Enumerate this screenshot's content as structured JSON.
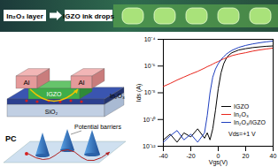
{
  "chart_data": {
    "type": "line",
    "x_label": "Vgs(V)",
    "y_label": "Ids (A)",
    "log": "y",
    "xlim": [
      -40,
      40
    ],
    "xticks": [
      -40,
      -20,
      0,
      20,
      40
    ],
    "ylim": [
      1e-12,
      0.0001
    ],
    "yticks": [
      {
        "value": 1e-12,
        "label": "10⁻¹²"
      },
      {
        "value": 1e-10,
        "label": "10⁻¹⁰"
      },
      {
        "value": 1e-08,
        "label": "10⁻⁸"
      },
      {
        "value": 1e-06,
        "label": "10⁻⁶"
      },
      {
        "value": 0.0001,
        "label": "10⁻⁴"
      }
    ],
    "grid": false,
    "legend": "bottom-right",
    "annotation": "Vds=+1 V",
    "x": [
      -40,
      -35,
      -30,
      -25,
      -20,
      -15,
      -10,
      -8,
      -6,
      -4,
      -2,
      0,
      2,
      4,
      6,
      8,
      10,
      15,
      20,
      25,
      30,
      35,
      40
    ],
    "series": [
      {
        "name": "IGZO",
        "color": "#000000",
        "values": [
          3e-12,
          8e-12,
          2e-12,
          1e-11,
          5e-12,
          2e-11,
          4e-12,
          1e-11,
          3e-12,
          2e-11,
          5e-10,
          2e-08,
          3e-07,
          1.5e-06,
          4e-06,
          7e-06,
          1e-05,
          1.6e-05,
          2e-05,
          2.4e-05,
          2.7e-05,
          3e-05,
          3.2e-05
        ]
      },
      {
        "name": "In₂O₃",
        "color": "#e8251c",
        "values": [
          3e-08,
          5e-08,
          9e-08,
          1.5e-07,
          2.5e-07,
          4e-07,
          7e-07,
          9e-07,
          1.1e-06,
          1.4e-06,
          1.8e-06,
          2.2e-06,
          2.8e-06,
          3.5e-06,
          4.2e-06,
          5e-06,
          6e-06,
          8e-06,
          1e-05,
          1.3e-05,
          1.6e-05,
          1.9e-05,
          2.2e-05
        ]
      },
      {
        "name": "In₂O₃/IGZO",
        "color": "#1f3fbf",
        "values": [
          2e-12,
          6e-12,
          1.5e-11,
          3e-12,
          8e-12,
          2e-12,
          1e-11,
          2e-10,
          1e-08,
          1.5e-07,
          6e-07,
          1.5e-06,
          3e-06,
          5e-06,
          8e-06,
          1.1e-05,
          1.5e-05,
          2.5e-05,
          3.5e-05,
          4.5e-05,
          5.5e-05,
          6.5e-05,
          7.5e-05
        ]
      }
    ]
  },
  "diagram": {
    "top_strip": {
      "left_label": "In₂O₃ layer",
      "right_label": "IGZO ink drops"
    },
    "device": {
      "electrodes": [
        "Al",
        "Al"
      ],
      "layers": [
        "IGZO",
        "In₂O₃",
        "SiO₂"
      ]
    },
    "pc": {
      "annotation": "Potential barriers",
      "label": "PC"
    }
  }
}
